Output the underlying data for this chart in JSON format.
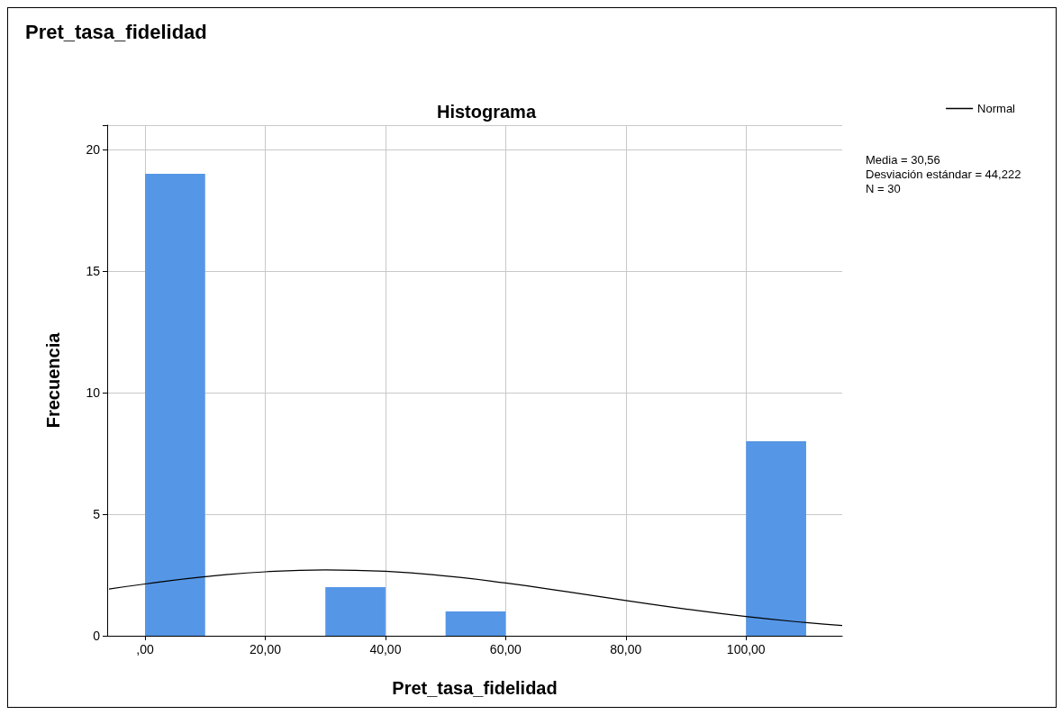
{
  "chart_data": {
    "type": "histogram",
    "title": "Pret_tasa_fidelidad",
    "subtitle": "Histograma",
    "xlabel": "Pret_tasa_fidelidad",
    "ylabel": "Frecuencia",
    "bins": [
      0,
      10,
      20,
      30,
      40,
      50,
      60,
      70,
      80,
      90,
      100,
      110
    ],
    "values": [
      19,
      0,
      0,
      2,
      0,
      1,
      0,
      0,
      0,
      0,
      8
    ],
    "color": "#5596e6",
    "series": [
      {
        "type": "line",
        "name": "Normal",
        "color": "#000000",
        "x": [
          -6,
          0,
          10,
          20,
          30,
          40,
          50,
          60,
          70,
          80,
          90,
          100,
          110,
          116
        ],
        "values": [
          1.92,
          2.13,
          2.43,
          2.63,
          2.71,
          2.65,
          2.46,
          2.17,
          1.82,
          1.45,
          1.1,
          0.79,
          0.54,
          0.42
        ]
      }
    ],
    "xlim": [
      -6.3,
      116
    ],
    "xticks": [
      {
        "value": 0,
        "label": ",00"
      },
      {
        "value": 20,
        "label": "20,00"
      },
      {
        "value": 40,
        "label": "40,00"
      },
      {
        "value": 60,
        "label": "60,00"
      },
      {
        "value": 80,
        "label": "80,00"
      },
      {
        "value": 100,
        "label": "100,00"
      }
    ],
    "ylim": [
      0,
      21
    ],
    "yticks": [
      0,
      5,
      10,
      15,
      20
    ],
    "grid": true,
    "legend": "top right",
    "annotations": [
      "Media = 30,56",
      "Desviación estándar = 44,222",
      "N = 30"
    ]
  }
}
